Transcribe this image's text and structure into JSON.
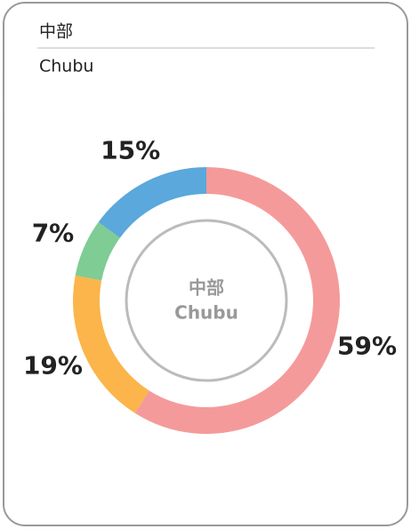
{
  "chart_data": {
    "type": "donut",
    "title": "中部",
    "subtitle": "Chubu",
    "values": [
      59,
      19,
      7,
      15
    ],
    "value_labels": [
      "59%",
      "19%",
      "7%",
      "15%"
    ],
    "colors": [
      "#f59a9a",
      "#fbb54a",
      "#7fcc94",
      "#5aa8dc"
    ]
  }
}
